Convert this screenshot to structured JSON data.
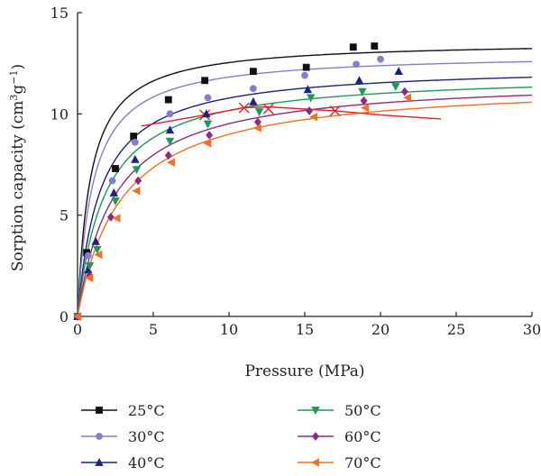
{
  "chart_data": {
    "type": "scatter",
    "title": "",
    "xlabel": "Pressure (MPa)",
    "ylabel": "Sorption capacity (cm³g⁻¹)",
    "ylabel_parts": [
      "Sorption capacity (cm",
      "3",
      "g",
      "−1",
      ")"
    ],
    "xlim": [
      0,
      30
    ],
    "ylim": [
      0,
      15
    ],
    "x_ticks": [
      0,
      5,
      10,
      15,
      20,
      25,
      30
    ],
    "y_ticks": [
      0,
      5,
      10,
      15
    ],
    "grid": false,
    "legend_position": "bottom",
    "series": [
      {
        "name": "25°C",
        "color": "#111111",
        "marker": "square",
        "points": [
          [
            0,
            0
          ],
          [
            0.6,
            3.15
          ],
          [
            2.5,
            7.3
          ],
          [
            3.7,
            8.9
          ],
          [
            6.0,
            10.7
          ],
          [
            8.4,
            11.65
          ],
          [
            11.6,
            12.1
          ],
          [
            15.1,
            12.3
          ],
          [
            18.2,
            13.3
          ],
          [
            19.6,
            13.35
          ]
        ],
        "fit": {
          "vl": 13.6,
          "pl": 0.85
        }
      },
      {
        "name": "30°C",
        "color": "#8080cc",
        "marker": "circle",
        "points": [
          [
            0,
            0
          ],
          [
            0.7,
            3.0
          ],
          [
            2.3,
            6.7
          ],
          [
            3.8,
            8.6
          ],
          [
            6.1,
            10.0
          ],
          [
            8.6,
            10.8
          ],
          [
            11.6,
            11.25
          ],
          [
            15.0,
            11.9
          ],
          [
            18.4,
            12.45
          ],
          [
            20.0,
            12.7
          ]
        ],
        "fit": {
          "vl": 13.0,
          "pl": 1.0
        }
      },
      {
        "name": "40°C",
        "color": "#1a237e",
        "marker": "triangle-up",
        "points": [
          [
            0,
            0
          ],
          [
            0.7,
            2.3
          ],
          [
            1.2,
            3.7
          ],
          [
            2.4,
            6.1
          ],
          [
            3.8,
            7.75
          ],
          [
            6.1,
            9.2
          ],
          [
            8.5,
            10.0
          ],
          [
            11.6,
            10.6
          ],
          [
            15.2,
            11.2
          ],
          [
            18.6,
            11.65
          ],
          [
            21.2,
            12.1
          ]
        ],
        "fit": {
          "vl": 12.4,
          "pl": 1.5
        }
      },
      {
        "name": "50°C",
        "color": "#1b9a55",
        "marker": "triangle-down",
        "points": [
          [
            0,
            0
          ],
          [
            0.8,
            2.5
          ],
          [
            1.3,
            3.3
          ],
          [
            2.5,
            5.7
          ],
          [
            3.9,
            7.25
          ],
          [
            6.1,
            8.65
          ],
          [
            8.6,
            9.5
          ],
          [
            12.0,
            10.1
          ],
          [
            15.4,
            10.8
          ],
          [
            18.8,
            11.1
          ],
          [
            21.0,
            11.35
          ]
        ],
        "fit": {
          "vl": 12.0,
          "pl": 1.8
        }
      },
      {
        "name": "60°C",
        "color": "#8e2b7f",
        "marker": "diamond",
        "points": [
          [
            0,
            0
          ],
          [
            0.8,
            2.0
          ],
          [
            2.2,
            4.9
          ],
          [
            4.0,
            6.7
          ],
          [
            6.0,
            7.95
          ],
          [
            8.7,
            8.95
          ],
          [
            11.9,
            9.6
          ],
          [
            15.3,
            10.15
          ],
          [
            18.9,
            10.65
          ],
          [
            21.6,
            11.1
          ]
        ],
        "fit": {
          "vl": 11.8,
          "pl": 2.4
        }
      },
      {
        "name": "70°C",
        "color": "#f36f21",
        "marker": "triangle-left",
        "points": [
          [
            0,
            0
          ],
          [
            0.8,
            1.9
          ],
          [
            1.4,
            3.05
          ],
          [
            2.6,
            4.85
          ],
          [
            3.9,
            6.2
          ],
          [
            6.2,
            7.6
          ],
          [
            8.6,
            8.55
          ],
          [
            11.9,
            9.3
          ],
          [
            15.6,
            9.85
          ],
          [
            19.0,
            10.3
          ],
          [
            21.8,
            10.8
          ]
        ],
        "fit": {
          "vl": 11.6,
          "pl": 2.9
        }
      }
    ],
    "extra_series": [
      {
        "color": "#e8212a",
        "marker": "cross",
        "points": [
          [
            8.4,
            9.95
          ],
          [
            11.0,
            10.3
          ],
          [
            12.6,
            10.25
          ],
          [
            17.0,
            10.15
          ]
        ],
        "line": [
          [
            4.2,
            9.4
          ],
          [
            8.4,
            9.95
          ],
          [
            11.0,
            10.3
          ],
          [
            12.6,
            10.35
          ],
          [
            17.0,
            10.15
          ],
          [
            20.0,
            9.95
          ],
          [
            24.0,
            9.75
          ]
        ]
      }
    ]
  }
}
